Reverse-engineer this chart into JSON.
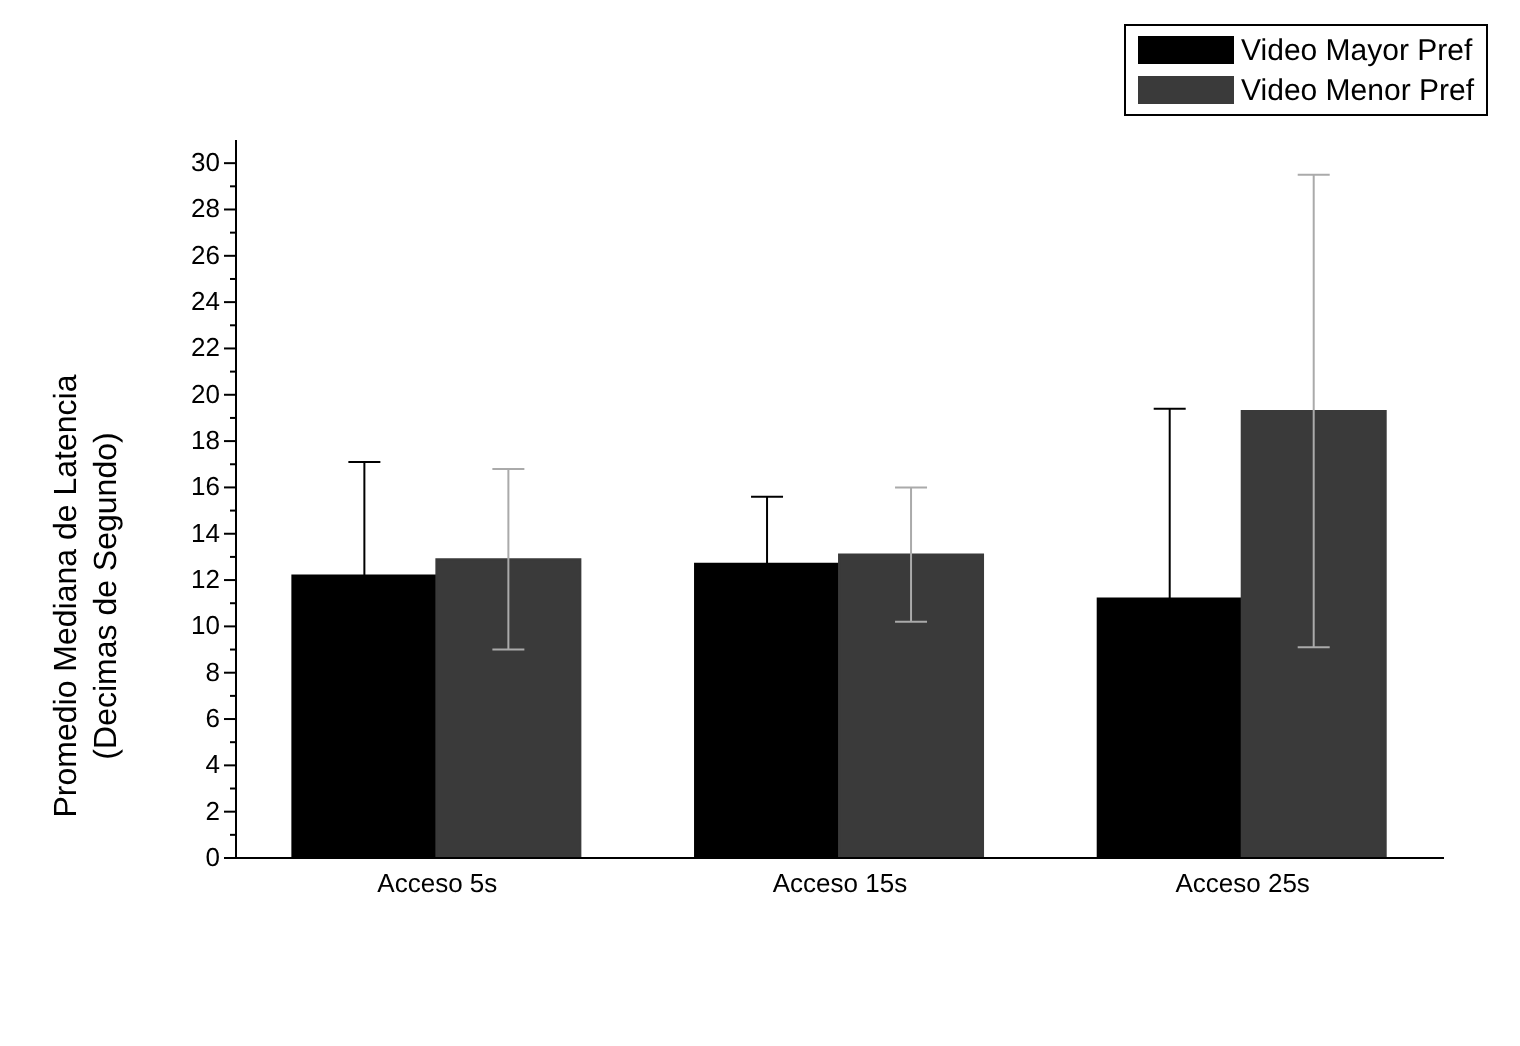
{
  "chart_data": {
    "type": "bar",
    "ylabel": "Promedio Mediana de Latencia\n(Decimas de Segundo)",
    "categories": [
      "Acceso 5s",
      "Acceso 15s",
      "Acceso 25s"
    ],
    "series": [
      {
        "name": "Video Mayor Pref",
        "color": "#000000",
        "values": [
          12.2,
          12.7,
          11.2
        ],
        "errors": [
          4.9,
          2.9,
          8.2
        ]
      },
      {
        "name": "Video Menor Pref",
        "color": "#3a3a3a",
        "values": [
          12.9,
          13.1,
          19.3
        ],
        "errors": [
          3.9,
          2.9,
          10.2
        ]
      }
    ],
    "ylim": [
      0,
      31
    ],
    "yticks": [
      0,
      {
        "value": 1,
        "label": null
      },
      2,
      {
        "value": 3,
        "label": null
      },
      4,
      {
        "value": 5,
        "label": null
      },
      6,
      {
        "value": 7,
        "label": null
      },
      8,
      {
        "value": 9,
        "label": null
      },
      10,
      {
        "value": 11,
        "label": null
      },
      12,
      {
        "value": 13,
        "label": null
      },
      14,
      {
        "value": 15,
        "label": null
      },
      16,
      {
        "value": 17,
        "label": null
      },
      18,
      {
        "value": 19,
        "label": null
      },
      20,
      {
        "value": 21,
        "label": null
      },
      22,
      {
        "value": 23,
        "label": null
      },
      24,
      {
        "value": 25,
        "label": null
      },
      26,
      {
        "value": 27,
        "label": null
      },
      28,
      {
        "value": 29,
        "label": null
      },
      30
    ],
    "grid": false,
    "legend": "top right"
  }
}
